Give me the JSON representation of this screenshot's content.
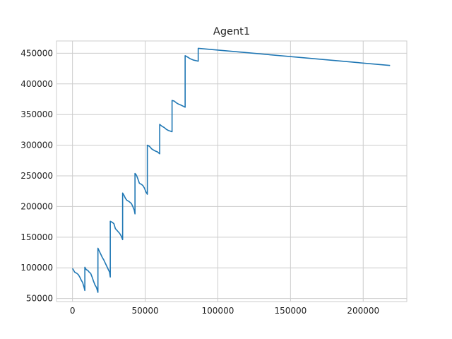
{
  "chart_data": {
    "type": "line",
    "title": "Agent1",
    "xlabel": "",
    "ylabel": "",
    "xlim": [
      -11000,
      230000
    ],
    "ylim": [
      45000,
      470000
    ],
    "grid": true,
    "x_ticks": [
      0,
      50000,
      100000,
      150000,
      200000
    ],
    "x_tick_labels": [
      "0",
      "50000",
      "100000",
      "150000",
      "200000"
    ],
    "y_ticks": [
      50000,
      100000,
      150000,
      200000,
      250000,
      300000,
      350000,
      400000,
      450000
    ],
    "y_tick_labels": [
      "50000",
      "100000",
      "150000",
      "200000",
      "250000",
      "300000",
      "350000",
      "400000",
      "450000"
    ],
    "series": [
      {
        "color": "#1f77b4",
        "points": [
          [
            0,
            99000
          ],
          [
            800,
            96000
          ],
          [
            1500,
            93000
          ],
          [
            3000,
            91000
          ],
          [
            4000,
            89000
          ],
          [
            5000,
            85000
          ],
          [
            6000,
            80000
          ],
          [
            7000,
            76000
          ],
          [
            7500,
            72000
          ],
          [
            8000,
            68000
          ],
          [
            8500,
            63000
          ],
          [
            8500,
            101000
          ],
          [
            9500,
            97000
          ],
          [
            10500,
            96000
          ],
          [
            11500,
            93000
          ],
          [
            12500,
            91000
          ],
          [
            13500,
            85000
          ],
          [
            14500,
            78000
          ],
          [
            15500,
            72000
          ],
          [
            16500,
            68000
          ],
          [
            17000,
            64000
          ],
          [
            17500,
            60000
          ],
          [
            17500,
            132000
          ],
          [
            18500,
            127000
          ],
          [
            19500,
            122000
          ],
          [
            20500,
            117000
          ],
          [
            21500,
            113000
          ],
          [
            22500,
            108000
          ],
          [
            23500,
            103000
          ],
          [
            24500,
            98000
          ],
          [
            25500,
            93000
          ],
          [
            26000,
            85000
          ],
          [
            26000,
            176000
          ],
          [
            27500,
            174000
          ],
          [
            28500,
            172000
          ],
          [
            29500,
            164000
          ],
          [
            31000,
            160000
          ],
          [
            32500,
            156000
          ],
          [
            33500,
            152000
          ],
          [
            34500,
            146000
          ],
          [
            34500,
            222000
          ],
          [
            35500,
            218000
          ],
          [
            36500,
            213000
          ],
          [
            37500,
            210000
          ],
          [
            39000,
            208000
          ],
          [
            40500,
            205000
          ],
          [
            41500,
            200000
          ],
          [
            42500,
            194000
          ],
          [
            43000,
            188000
          ],
          [
            43000,
            254000
          ],
          [
            44000,
            251000
          ],
          [
            45000,
            245000
          ],
          [
            46000,
            238000
          ],
          [
            47500,
            236000
          ],
          [
            48500,
            234000
          ],
          [
            49500,
            230000
          ],
          [
            50500,
            224000
          ],
          [
            51500,
            220000
          ],
          [
            51500,
            300000
          ],
          [
            53000,
            298000
          ],
          [
            54500,
            294000
          ],
          [
            56500,
            291000
          ],
          [
            58500,
            289000
          ],
          [
            60000,
            286000
          ],
          [
            60000,
            334000
          ],
          [
            61500,
            331000
          ],
          [
            63000,
            329000
          ],
          [
            64500,
            326000
          ],
          [
            66000,
            324000
          ],
          [
            68500,
            322000
          ],
          [
            68500,
            373000
          ],
          [
            70000,
            372000
          ],
          [
            71500,
            369000
          ],
          [
            73000,
            367000
          ],
          [
            75000,
            365000
          ],
          [
            77500,
            362000
          ],
          [
            77500,
            446000
          ],
          [
            79000,
            444000
          ],
          [
            81000,
            441000
          ],
          [
            83000,
            439000
          ],
          [
            86500,
            437000
          ],
          [
            86500,
            458000
          ],
          [
            218500,
            430000
          ]
        ]
      }
    ]
  }
}
